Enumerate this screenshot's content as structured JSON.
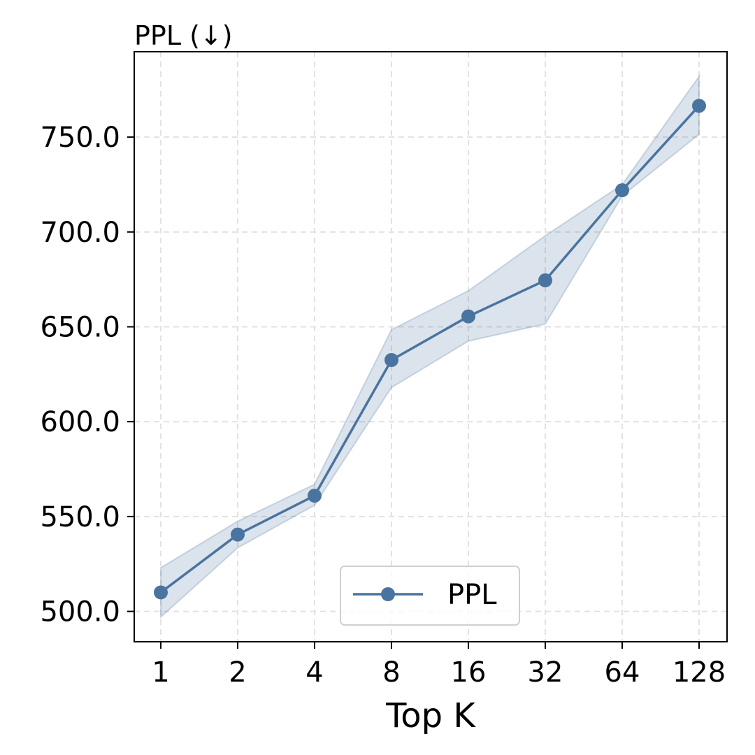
{
  "chart_data": {
    "type": "line",
    "title": "PPL (↓)",
    "xlabel": "Top K",
    "ylabel": "",
    "categories": [
      "1",
      "2",
      "4",
      "8",
      "16",
      "32",
      "64",
      "128"
    ],
    "ylim": [
      484,
      795
    ],
    "yticks": [
      "500.0",
      "550.0",
      "600.0",
      "650.0",
      "700.0",
      "750.0"
    ],
    "grid": true,
    "legend_position": "lower-center",
    "series": [
      {
        "name": "PPL",
        "color": "#4a74a0",
        "marker": "circle",
        "values": [
          510,
          540.5,
          561,
          632.5,
          655.5,
          674.5,
          722,
          766.5
        ],
        "band_lower": [
          497,
          533.5,
          556,
          618,
          642.5,
          651.5,
          719,
          751.5
        ],
        "band_upper": [
          523,
          547.5,
          567,
          648.5,
          669,
          698,
          725,
          782
        ]
      }
    ]
  }
}
